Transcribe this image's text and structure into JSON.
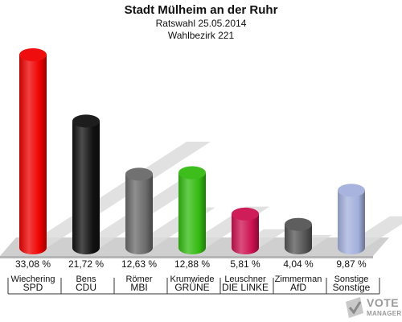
{
  "header": {
    "title": "Stadt Mülheim an der Ruhr",
    "subtitle_1": "Ratswahl 25.05.2014",
    "subtitle_2": "Wahlbezirk 221"
  },
  "chart_data": {
    "type": "bar",
    "title": "Stadt Mülheim an der Ruhr",
    "subtitle": [
      "Ratswahl 25.05.2014",
      "Wahlbezirk 221"
    ],
    "categories": [
      "SPD",
      "CDU",
      "MBI",
      "GRÜNE",
      "DIE LINKE",
      "AfD",
      "Sonstige"
    ],
    "candidates": [
      "Wiechering",
      "Bens",
      "Römer",
      "Krumwiede",
      "Leuschner",
      "Zimmerman",
      "Sonstige"
    ],
    "values": [
      33.08,
      21.72,
      12.63,
      12.88,
      5.81,
      4.04,
      9.87
    ],
    "value_labels": [
      "33,08 %",
      "21,72 %",
      "12,63 %",
      "12,88 %",
      "5,81 %",
      "4,04 %",
      "9,87 %"
    ],
    "colors": [
      "#ee0000",
      "#111111",
      "#6a6a6a",
      "#33bb11",
      "#cc1150",
      "#555555",
      "#a3b0dc"
    ],
    "ylim": [
      0,
      33.08
    ],
    "grid": false,
    "legend": "none"
  },
  "watermark": {
    "line1": "VOTE",
    "line2": "MANAGER",
    "icon": "ballot-check-icon"
  }
}
